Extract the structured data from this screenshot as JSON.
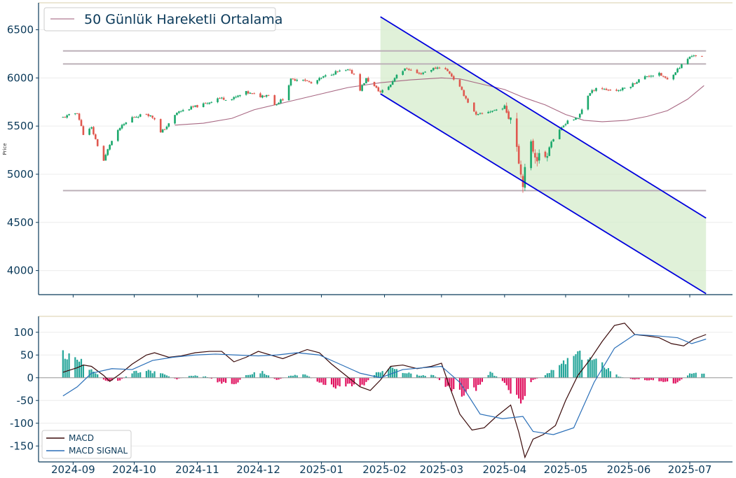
{
  "chart_data": [
    {
      "type": "candlestick",
      "ylabel": "Price",
      "ylim": [
        3750,
        6780
      ],
      "xlim": [
        "2024-08-15",
        "2025-07-22"
      ],
      "yticks": [
        4000,
        4500,
        5000,
        5500,
        6000,
        6500
      ],
      "legend": {
        "placement": "top-left",
        "entries": [
          {
            "label": "50 Günlük Hareketli Ortalama",
            "color": "#b07a92"
          }
        ]
      },
      "colors": {
        "up": "#1aa86b",
        "down": "#e0584f",
        "ma": "#a86883",
        "channel": "#0000dd",
        "channel_fill": "#d6eccc",
        "levels": "#bcb0b8"
      },
      "horizontal_levels": [
        {
          "value": 6280,
          "x": [
            "2024-08-27",
            "2025-07-09"
          ]
        },
        {
          "value": 6145,
          "x": [
            "2024-08-27",
            "2025-07-09"
          ]
        },
        {
          "value": 4830,
          "x": [
            "2024-08-27",
            "2025-07-09"
          ]
        }
      ],
      "channel": {
        "upper": [
          [
            "2025-01-30",
            6635
          ],
          [
            "2025-07-09",
            4545
          ]
        ],
        "lower": [
          [
            "2025-01-30",
            5835
          ],
          [
            "2025-07-09",
            3760
          ]
        ]
      },
      "price_series": [
        [
          "2024-08-27",
          5590
        ],
        [
          "2024-09-03",
          5640
        ],
        [
          "2024-09-06",
          5420
        ],
        [
          "2024-09-10",
          5480
        ],
        [
          "2024-09-13",
          5300
        ],
        [
          "2024-09-16",
          5140
        ],
        [
          "2024-09-19",
          5310
        ],
        [
          "2024-09-24",
          5480
        ],
        [
          "2024-09-30",
          5590
        ],
        [
          "2024-10-07",
          5630
        ],
        [
          "2024-10-11",
          5580
        ],
        [
          "2024-10-14",
          5430
        ],
        [
          "2024-10-18",
          5520
        ],
        [
          "2024-10-22",
          5640
        ],
        [
          "2024-10-29",
          5690
        ],
        [
          "2024-11-05",
          5730
        ],
        [
          "2024-11-11",
          5790
        ],
        [
          "2024-11-18",
          5780
        ],
        [
          "2024-11-25",
          5850
        ],
        [
          "2024-12-02",
          5810
        ],
        [
          "2024-12-06",
          5830
        ],
        [
          "2024-12-09",
          5720
        ],
        [
          "2024-12-13",
          5780
        ],
        [
          "2024-12-17",
          5980
        ],
        [
          "2024-12-23",
          5990
        ],
        [
          "2024-12-27",
          5940
        ],
        [
          "2025-01-02",
          6010
        ],
        [
          "2025-01-08",
          6060
        ],
        [
          "2025-01-14",
          6080
        ],
        [
          "2025-01-17",
          6040
        ],
        [
          "2025-01-20",
          5880
        ],
        [
          "2025-01-23",
          5990
        ],
        [
          "2025-01-30",
          5850
        ],
        [
          "2025-02-04",
          5930
        ],
        [
          "2025-02-07",
          6040
        ],
        [
          "2025-02-12",
          6100
        ],
        [
          "2025-02-18",
          6040
        ],
        [
          "2025-02-24",
          6090
        ],
        [
          "2025-03-01",
          6120
        ],
        [
          "2025-03-05",
          6050
        ],
        [
          "2025-03-10",
          5900
        ],
        [
          "2025-03-14",
          5750
        ],
        [
          "2025-03-18",
          5610
        ],
        [
          "2025-03-24",
          5650
        ],
        [
          "2025-03-28",
          5670
        ],
        [
          "2025-04-01",
          5700
        ],
        [
          "2025-04-04",
          5600
        ],
        [
          "2025-04-07",
          5320
        ],
        [
          "2025-04-09",
          5000
        ],
        [
          "2025-04-10",
          4930
        ],
        [
          "2025-04-14",
          5300
        ],
        [
          "2025-04-17",
          5180
        ],
        [
          "2025-04-21",
          5190
        ],
        [
          "2025-04-24",
          5340
        ],
        [
          "2025-04-28",
          5450
        ],
        [
          "2025-05-02",
          5560
        ],
        [
          "2025-05-07",
          5580
        ],
        [
          "2025-05-12",
          5820
        ],
        [
          "2025-05-16",
          5900
        ],
        [
          "2025-05-21",
          5880
        ],
        [
          "2025-05-27",
          5870
        ],
        [
          "2025-06-02",
          5920
        ],
        [
          "2025-06-06",
          5980
        ],
        [
          "2025-06-10",
          6020
        ],
        [
          "2025-06-16",
          6040
        ],
        [
          "2025-06-20",
          5980
        ],
        [
          "2025-06-25",
          6090
        ],
        [
          "2025-06-30",
          6200
        ],
        [
          "2025-07-03",
          6240
        ],
        [
          "2025-07-07",
          6220
        ]
      ],
      "ma50": [
        [
          "2024-10-21",
          5510
        ],
        [
          "2024-11-04",
          5530
        ],
        [
          "2024-11-18",
          5580
        ],
        [
          "2024-11-29",
          5670
        ],
        [
          "2024-12-13",
          5740
        ],
        [
          "2024-12-31",
          5830
        ],
        [
          "2025-01-14",
          5900
        ],
        [
          "2025-01-30",
          5950
        ],
        [
          "2025-02-14",
          5980
        ],
        [
          "2025-03-01",
          6000
        ],
        [
          "2025-03-10",
          5990
        ],
        [
          "2025-03-20",
          5940
        ],
        [
          "2025-04-01",
          5880
        ],
        [
          "2025-04-10",
          5800
        ],
        [
          "2025-04-21",
          5720
        ],
        [
          "2025-05-01",
          5620
        ],
        [
          "2025-05-10",
          5560
        ],
        [
          "2025-05-19",
          5545
        ],
        [
          "2025-05-31",
          5560
        ],
        [
          "2025-06-10",
          5600
        ],
        [
          "2025-06-20",
          5660
        ],
        [
          "2025-06-30",
          5780
        ],
        [
          "2025-07-08",
          5920
        ]
      ]
    },
    {
      "type": "line+bar",
      "ylim": [
        -185,
        135
      ],
      "yticks": [
        -150,
        -100,
        -50,
        0,
        50,
        100
      ],
      "x_tick_labels": [
        "2024-09",
        "2024-10",
        "2024-11",
        "2024-12",
        "2025-01",
        "2025-02",
        "2025-03",
        "2025-04",
        "2025-05",
        "2025-06",
        "2025-07"
      ],
      "legend": {
        "placement": "bottom-left",
        "entries": [
          {
            "label": "MACD",
            "color": "#3a0a0a"
          },
          {
            "label": "MACD SIGNAL",
            "color": "#2a6fb8"
          }
        ]
      },
      "colors": {
        "hist_pos": "#26a69a",
        "hist_neg": "#e0115f"
      },
      "series": [
        {
          "name": "MACD",
          "values": [
            [
              "2024-08-27",
              12
            ],
            [
              "2024-09-03",
              22
            ],
            [
              "2024-09-06",
              28
            ],
            [
              "2024-09-10",
              25
            ],
            [
              "2024-09-16",
              5
            ],
            [
              "2024-09-19",
              -8
            ],
            [
              "2024-09-24",
              8
            ],
            [
              "2024-09-30",
              30
            ],
            [
              "2024-10-07",
              50
            ],
            [
              "2024-10-11",
              55
            ],
            [
              "2024-10-18",
              45
            ],
            [
              "2024-10-24",
              48
            ],
            [
              "2024-10-31",
              55
            ],
            [
              "2024-11-07",
              58
            ],
            [
              "2024-11-13",
              58
            ],
            [
              "2024-11-19",
              35
            ],
            [
              "2024-11-25",
              45
            ],
            [
              "2024-12-01",
              58
            ],
            [
              "2024-12-07",
              50
            ],
            [
              "2024-12-13",
              42
            ],
            [
              "2024-12-19",
              52
            ],
            [
              "2024-12-25",
              62
            ],
            [
              "2024-12-31",
              55
            ],
            [
              "2025-01-06",
              30
            ],
            [
              "2025-01-13",
              5
            ],
            [
              "2025-01-20",
              -20
            ],
            [
              "2025-01-25",
              -28
            ],
            [
              "2025-01-30",
              -5
            ],
            [
              "2025-02-04",
              25
            ],
            [
              "2025-02-10",
              28
            ],
            [
              "2025-02-17",
              20
            ],
            [
              "2025-02-24",
              25
            ],
            [
              "2025-03-01",
              32
            ],
            [
              "2025-03-05",
              -20
            ],
            [
              "2025-03-10",
              -80
            ],
            [
              "2025-03-16",
              -115
            ],
            [
              "2025-03-22",
              -110
            ],
            [
              "2025-03-28",
              -85
            ],
            [
              "2025-04-04",
              -60
            ],
            [
              "2025-04-08",
              -120
            ],
            [
              "2025-04-11",
              -175
            ],
            [
              "2025-04-15",
              -135
            ],
            [
              "2025-04-20",
              -125
            ],
            [
              "2025-04-26",
              -105
            ],
            [
              "2025-05-01",
              -50
            ],
            [
              "2025-05-07",
              5
            ],
            [
              "2025-05-13",
              40
            ],
            [
              "2025-05-19",
              80
            ],
            [
              "2025-05-25",
              115
            ],
            [
              "2025-05-30",
              120
            ],
            [
              "2025-06-04",
              95
            ],
            [
              "2025-06-10",
              92
            ],
            [
              "2025-06-16",
              88
            ],
            [
              "2025-06-22",
              75
            ],
            [
              "2025-06-28",
              70
            ],
            [
              "2025-07-03",
              85
            ],
            [
              "2025-07-09",
              95
            ]
          ]
        },
        {
          "name": "MACD SIGNAL",
          "values": [
            [
              "2024-08-27",
              -40
            ],
            [
              "2024-09-03",
              -20
            ],
            [
              "2024-09-10",
              10
            ],
            [
              "2024-09-20",
              20
            ],
            [
              "2024-09-30",
              18
            ],
            [
              "2024-10-10",
              38
            ],
            [
              "2024-10-20",
              45
            ],
            [
              "2024-10-31",
              50
            ],
            [
              "2024-11-10",
              52
            ],
            [
              "2024-11-20",
              50
            ],
            [
              "2024-12-01",
              48
            ],
            [
              "2024-12-10",
              50
            ],
            [
              "2024-12-20",
              55
            ],
            [
              "2024-12-31",
              50
            ],
            [
              "2025-01-10",
              30
            ],
            [
              "2025-01-20",
              10
            ],
            [
              "2025-01-30",
              0
            ],
            [
              "2025-02-10",
              18
            ],
            [
              "2025-02-20",
              22
            ],
            [
              "2025-03-01",
              25
            ],
            [
              "2025-03-10",
              -10
            ],
            [
              "2025-03-20",
              -80
            ],
            [
              "2025-03-31",
              -90
            ],
            [
              "2025-04-10",
              -85
            ],
            [
              "2025-04-15",
              -118
            ],
            [
              "2025-04-25",
              -125
            ],
            [
              "2025-05-05",
              -110
            ],
            [
              "2025-05-15",
              -10
            ],
            [
              "2025-05-25",
              65
            ],
            [
              "2025-06-04",
              95
            ],
            [
              "2025-06-15",
              92
            ],
            [
              "2025-06-25",
              88
            ],
            [
              "2025-07-02",
              75
            ],
            [
              "2025-07-09",
              85
            ]
          ]
        },
        {
          "name": "Histogram",
          "values": [
            [
              "2024-08-27",
              50
            ],
            [
              "2024-09-03",
              40
            ],
            [
              "2024-09-10",
              20
            ],
            [
              "2024-09-17",
              -8
            ],
            [
              "2024-09-24",
              -5
            ],
            [
              "2024-10-01",
              12
            ],
            [
              "2024-10-08",
              15
            ],
            [
              "2024-10-15",
              8
            ],
            [
              "2024-10-22",
              -3
            ],
            [
              "2024-10-29",
              5
            ],
            [
              "2024-11-05",
              3
            ],
            [
              "2024-11-12",
              -10
            ],
            [
              "2024-11-19",
              -15
            ],
            [
              "2024-11-26",
              8
            ],
            [
              "2024-12-03",
              12
            ],
            [
              "2024-12-10",
              -5
            ],
            [
              "2024-12-17",
              5
            ],
            [
              "2024-12-24",
              8
            ],
            [
              "2024-12-31",
              -12
            ],
            [
              "2025-01-07",
              -20
            ],
            [
              "2025-01-14",
              -15
            ],
            [
              "2025-01-21",
              -18
            ],
            [
              "2025-01-28",
              10
            ],
            [
              "2025-02-04",
              20
            ],
            [
              "2025-02-11",
              12
            ],
            [
              "2025-02-18",
              5
            ],
            [
              "2025-02-25",
              6
            ],
            [
              "2025-03-04",
              -20
            ],
            [
              "2025-03-11",
              -35
            ],
            [
              "2025-03-18",
              -25
            ],
            [
              "2025-03-25",
              12
            ],
            [
              "2025-04-01",
              -10
            ],
            [
              "2025-04-08",
              -55
            ],
            [
              "2025-04-15",
              -5
            ],
            [
              "2025-04-22",
              8
            ],
            [
              "2025-04-29",
              30
            ],
            [
              "2025-05-06",
              50
            ],
            [
              "2025-05-13",
              42
            ],
            [
              "2025-05-20",
              28
            ],
            [
              "2025-05-27",
              3
            ],
            [
              "2025-06-03",
              -3
            ],
            [
              "2025-06-10",
              -5
            ],
            [
              "2025-06-17",
              -8
            ],
            [
              "2025-06-24",
              -12
            ],
            [
              "2025-07-01",
              8
            ],
            [
              "2025-07-08",
              10
            ]
          ]
        }
      ]
    }
  ]
}
